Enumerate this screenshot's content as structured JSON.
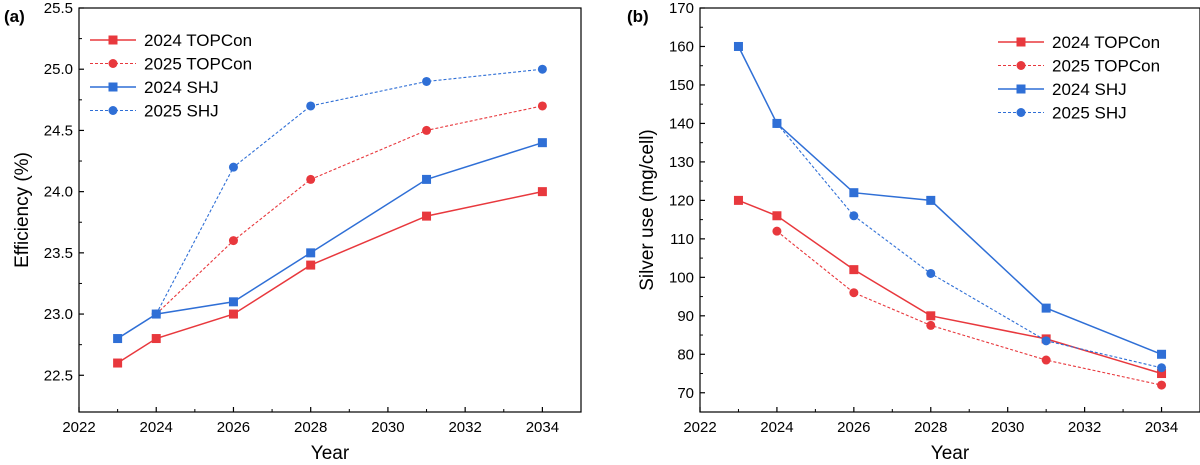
{
  "chart_data": [
    {
      "type": "line",
      "panel_label": "(a)",
      "xlabel": "Year",
      "ylabel": "Efficiency (%)",
      "xlim": [
        2022,
        2035
      ],
      "ylim": [
        22.2,
        25.5
      ],
      "xticks": [
        2022,
        2024,
        2026,
        2028,
        2030,
        2032,
        2034
      ],
      "xtick_labels": [
        "2022",
        "2024",
        "2026",
        "2028",
        "2030",
        "2032",
        "2034"
      ],
      "yticks": [
        22.5,
        23.0,
        23.5,
        24.0,
        24.5,
        25.0,
        25.5
      ],
      "ytick_labels": [
        "22.5",
        "23.0",
        "23.5",
        "24.0",
        "24.5",
        "25.0",
        "25.5"
      ],
      "legend_position": "top-left",
      "series": [
        {
          "name": "2024 TOPCon",
          "color": "#e8383d",
          "dash": "solid",
          "marker": "square",
          "x": [
            2023,
            2024,
            2026,
            2028,
            2031,
            2034
          ],
          "y": [
            22.6,
            22.8,
            23.0,
            23.4,
            23.8,
            24.0
          ]
        },
        {
          "name": "2025 TOPCon",
          "color": "#e8383d",
          "dash": "dotted",
          "marker": "circle",
          "x": [
            2024,
            2026,
            2028,
            2031,
            2034
          ],
          "y": [
            23.0,
            23.6,
            24.1,
            24.5,
            24.7
          ]
        },
        {
          "name": "2024 SHJ",
          "color": "#2f6fd6",
          "dash": "solid",
          "marker": "square",
          "x": [
            2023,
            2024,
            2026,
            2028,
            2031,
            2034
          ],
          "y": [
            22.8,
            23.0,
            23.1,
            23.5,
            24.1,
            24.4
          ]
        },
        {
          "name": "2025 SHJ",
          "color": "#2f6fd6",
          "dash": "dotted",
          "marker": "circle",
          "x": [
            2024,
            2026,
            2028,
            2031,
            2034
          ],
          "y": [
            23.0,
            24.2,
            24.7,
            24.9,
            25.0
          ]
        }
      ]
    },
    {
      "type": "line",
      "panel_label": "(b)",
      "xlabel": "Year",
      "ylabel": "Silver use (mg/cell)",
      "xlim": [
        2022,
        2035
      ],
      "ylim": [
        65,
        170
      ],
      "xticks": [
        2022,
        2024,
        2026,
        2028,
        2030,
        2032,
        2034
      ],
      "xtick_labels": [
        "2022",
        "2024",
        "2026",
        "2028",
        "2030",
        "2032",
        "2034"
      ],
      "yticks": [
        70,
        80,
        90,
        100,
        110,
        120,
        130,
        140,
        150,
        160,
        170
      ],
      "ytick_labels": [
        "70",
        "80",
        "90",
        "100",
        "110",
        "120",
        "130",
        "140",
        "150",
        "160",
        "170"
      ],
      "legend_position": "top-right",
      "series": [
        {
          "name": "2024 TOPCon",
          "color": "#e8383d",
          "dash": "solid",
          "marker": "square",
          "x": [
            2023,
            2024,
            2026,
            2028,
            2031,
            2034
          ],
          "y": [
            120,
            116,
            102,
            90,
            84,
            75
          ]
        },
        {
          "name": "2025 TOPCon",
          "color": "#e8383d",
          "dash": "dotted",
          "marker": "circle",
          "x": [
            2024,
            2026,
            2028,
            2031,
            2034
          ],
          "y": [
            112,
            96,
            87.5,
            78.5,
            72
          ]
        },
        {
          "name": "2024 SHJ",
          "color": "#2f6fd6",
          "dash": "solid",
          "marker": "square",
          "x": [
            2023,
            2024,
            2026,
            2028,
            2031,
            2034
          ],
          "y": [
            160,
            140,
            122,
            120,
            92,
            80
          ]
        },
        {
          "name": "2025 SHJ",
          "color": "#2f6fd6",
          "dash": "dotted",
          "marker": "circle",
          "x": [
            2024,
            2026,
            2028,
            2031,
            2034
          ],
          "y": [
            140,
            116,
            101,
            83.5,
            76.5
          ]
        }
      ]
    }
  ]
}
